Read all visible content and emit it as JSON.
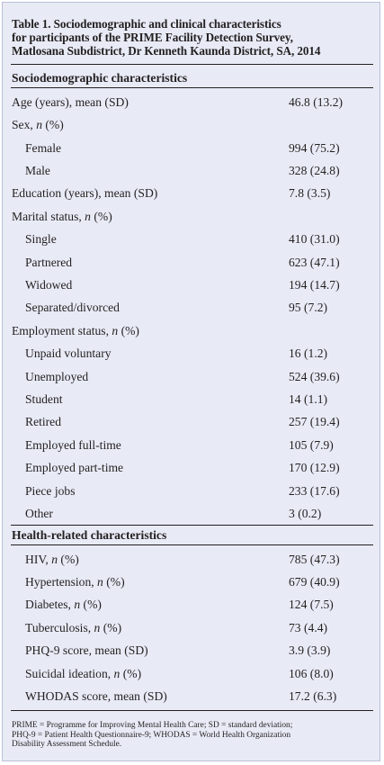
{
  "table": {
    "title_lines": [
      "Table 1. Sociodemographic and clinical characteristics",
      "for participants of the PRIME Facility Detection Survey,",
      "Matlosana Subdistrict, Dr Kenneth Kaunda District, SA, 2014"
    ],
    "section_sociodemographic": "Sociodemographic characteristics",
    "section_health": "Health-related characteristics",
    "socio_rows": [
      {
        "label": "Age (years), mean (SD)",
        "value": "46.8 (13.2)"
      },
      {
        "label": "Sex, n (%)",
        "value": ""
      },
      {
        "label": "Female",
        "value": "994 (75.2)"
      },
      {
        "label": "Male",
        "value": "328 (24.8)"
      },
      {
        "label": "Education (years), mean (SD)",
        "value": "7.8 (3.5)"
      },
      {
        "label": "Marital status, n (%)",
        "value": ""
      },
      {
        "label": "Single",
        "value": "410 (31.0)"
      },
      {
        "label": "Partnered",
        "value": "623 (47.1)"
      },
      {
        "label": "Widowed",
        "value": "194 (14.7)"
      },
      {
        "label": "Separated/divorced",
        "value": "95 (7.2)"
      },
      {
        "label": "Employment status, n (%)",
        "value": ""
      },
      {
        "label": "Unpaid voluntary",
        "value": "16 (1.2)"
      },
      {
        "label": "Unemployed",
        "value": "524 (39.6)"
      },
      {
        "label": "Student",
        "value": "14 (1.1)"
      },
      {
        "label": "Retired",
        "value": "257 (19.4)"
      },
      {
        "label": "Employed full-time",
        "value": "105 (7.9)"
      },
      {
        "label": "Employed part-time",
        "value": "170 (12.9)"
      },
      {
        "label": "Piece jobs",
        "value": "233 (17.6)"
      },
      {
        "label": "Other",
        "value": "3 (0.2)"
      }
    ],
    "health_rows": [
      {
        "label": "HIV, n (%)",
        "value": "785 (47.3)"
      },
      {
        "label": "Hypertension, n (%)",
        "value": "679 (40.9)"
      },
      {
        "label": "Diabetes, n (%)",
        "value": "124 (7.5)"
      },
      {
        "label": "Tuberculosis, n (%)",
        "value": "73 (4.4)"
      },
      {
        "label": "PHQ-9 score, mean (SD)",
        "value": "3.9 (3.9)"
      },
      {
        "label": "Suicidal ideation, n (%)",
        "value": "106 (8.0)"
      },
      {
        "label": "WHODAS score, mean (SD)",
        "value": "17.2 (6.3)"
      }
    ],
    "footnote_lines": [
      "PRIME = Programme for Improving Mental Health Care; SD = standard deviation;",
      "PHQ-9 = Patient Health Questionnaire-9; WHODAS = World Health Organization",
      "Disability Assessment Schedule."
    ]
  }
}
